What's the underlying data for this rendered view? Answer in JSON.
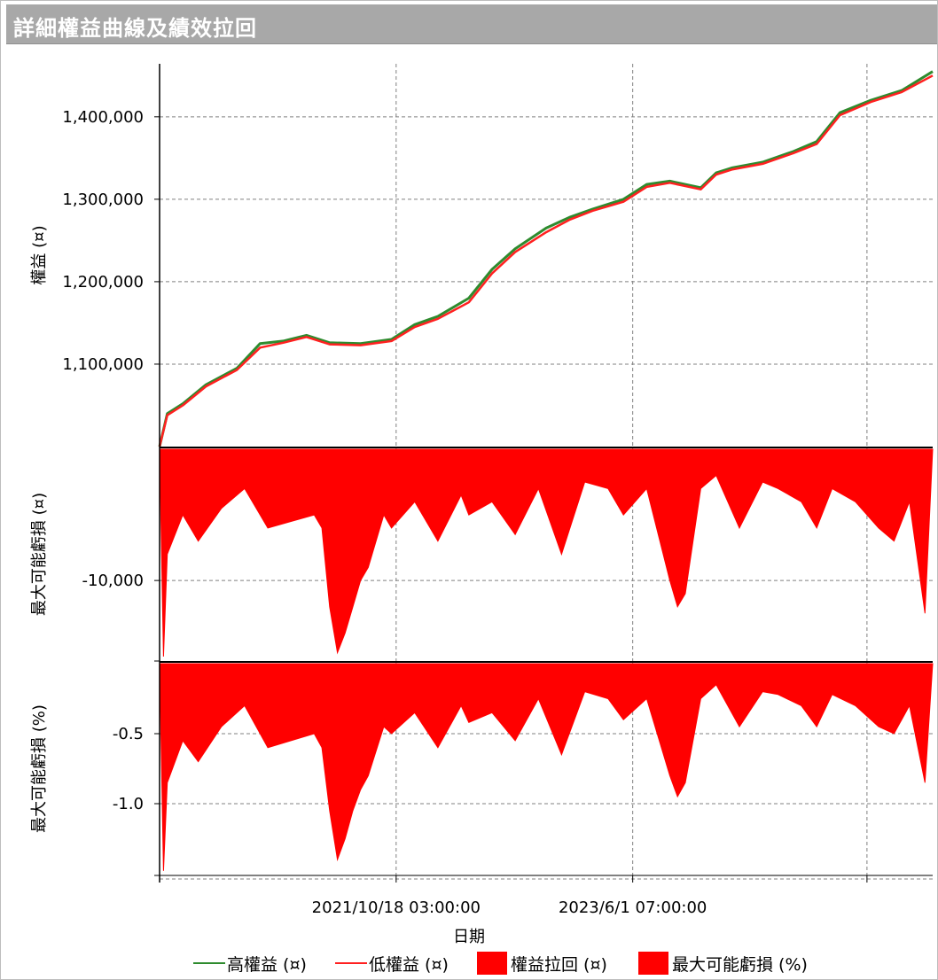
{
  "window": {
    "title": "詳細權益曲線及績效拉回"
  },
  "colors": {
    "equity_high": "#2e8b2e",
    "equity_low": "#ff2020",
    "drawdown": "#ff0000",
    "grid": "#808080"
  },
  "chart_data": [
    {
      "type": "line",
      "ylabel": "權益 (¤)",
      "ylim": [
        1000000,
        1460000
      ],
      "yticks": [
        1100000,
        1200000,
        1300000,
        1400000
      ],
      "ytick_labels": [
        "1,100,000",
        "1,200,000",
        "1,300,000",
        "1,400,000"
      ],
      "x_fraction": [
        0.0,
        0.01,
        0.03,
        0.06,
        0.1,
        0.13,
        0.16,
        0.19,
        0.22,
        0.26,
        0.3,
        0.33,
        0.36,
        0.4,
        0.43,
        0.46,
        0.5,
        0.53,
        0.56,
        0.6,
        0.63,
        0.66,
        0.7,
        0.72,
        0.74,
        0.78,
        0.82,
        0.85,
        0.88,
        0.92,
        0.96,
        1.0
      ],
      "series": [
        {
          "name": "高權益 (¤)",
          "values": [
            1000000,
            1040000,
            1052000,
            1075000,
            1095000,
            1125000,
            1128000,
            1135000,
            1126000,
            1125000,
            1130000,
            1148000,
            1158000,
            1180000,
            1215000,
            1240000,
            1265000,
            1278000,
            1288000,
            1300000,
            1318000,
            1322000,
            1314000,
            1332000,
            1338000,
            1345000,
            1358000,
            1370000,
            1405000,
            1420000,
            1432000,
            1455000
          ]
        },
        {
          "name": "低權益 (¤)",
          "values": [
            1000000,
            1038000,
            1050000,
            1073000,
            1093000,
            1120000,
            1126000,
            1133000,
            1124000,
            1123000,
            1128000,
            1145000,
            1155000,
            1175000,
            1210000,
            1236000,
            1260000,
            1275000,
            1286000,
            1297000,
            1315000,
            1320000,
            1312000,
            1330000,
            1336000,
            1343000,
            1356000,
            1367000,
            1402000,
            1418000,
            1430000,
            1450000
          ]
        }
      ]
    },
    {
      "type": "area",
      "ylabel": "最大可能虧損 (¤)",
      "series_name": "權益拉回 (¤)",
      "ylim": [
        -16000,
        0
      ],
      "yticks": [
        -10000
      ],
      "ytick_labels": [
        "-10,000"
      ],
      "x_fraction": [
        0.0,
        0.005,
        0.01,
        0.03,
        0.05,
        0.08,
        0.11,
        0.14,
        0.17,
        0.2,
        0.21,
        0.22,
        0.23,
        0.24,
        0.25,
        0.26,
        0.27,
        0.29,
        0.3,
        0.33,
        0.36,
        0.39,
        0.4,
        0.43,
        0.46,
        0.49,
        0.52,
        0.55,
        0.58,
        0.6,
        0.63,
        0.66,
        0.67,
        0.68,
        0.7,
        0.72,
        0.75,
        0.78,
        0.8,
        0.83,
        0.85,
        0.87,
        0.9,
        0.93,
        0.95,
        0.97,
        0.99,
        1.0
      ],
      "values": [
        0,
        -15800,
        -8000,
        -5000,
        -7000,
        -4500,
        -3000,
        -6000,
        -5500,
        -5000,
        -6000,
        -12000,
        -15500,
        -14000,
        -12000,
        -10000,
        -9000,
        -5000,
        -6000,
        -4000,
        -7000,
        -3500,
        -5000,
        -4000,
        -6500,
        -3000,
        -8000,
        -2500,
        -3000,
        -5000,
        -3000,
        -10000,
        -12000,
        -11000,
        -3000,
        -2000,
        -6000,
        -2500,
        -3000,
        -4000,
        -6000,
        -3000,
        -4000,
        -6000,
        -7000,
        -4000,
        -12500,
        0
      ]
    },
    {
      "type": "area",
      "ylabel": "最大可能虧損 (%)",
      "series_name": "最大可能虧損 (%)",
      "ylim": [
        -1.5,
        0
      ],
      "yticks": [
        -0.5,
        -1.0
      ],
      "ytick_labels": [
        "-0.5",
        "-1.0"
      ],
      "x_fraction": [
        0.0,
        0.005,
        0.01,
        0.03,
        0.05,
        0.08,
        0.11,
        0.14,
        0.17,
        0.2,
        0.21,
        0.22,
        0.23,
        0.24,
        0.25,
        0.26,
        0.27,
        0.29,
        0.3,
        0.33,
        0.36,
        0.39,
        0.4,
        0.43,
        0.46,
        0.49,
        0.52,
        0.55,
        0.58,
        0.6,
        0.63,
        0.66,
        0.67,
        0.68,
        0.7,
        0.72,
        0.75,
        0.78,
        0.8,
        0.83,
        0.85,
        0.87,
        0.9,
        0.93,
        0.95,
        0.97,
        0.99,
        1.0
      ],
      "values": [
        0,
        -1.48,
        -0.85,
        -0.55,
        -0.7,
        -0.45,
        -0.3,
        -0.6,
        -0.55,
        -0.5,
        -0.6,
        -1.05,
        -1.4,
        -1.25,
        -1.05,
        -0.9,
        -0.8,
        -0.45,
        -0.5,
        -0.35,
        -0.6,
        -0.3,
        -0.42,
        -0.35,
        -0.55,
        -0.25,
        -0.65,
        -0.2,
        -0.25,
        -0.4,
        -0.25,
        -0.8,
        -0.95,
        -0.85,
        -0.25,
        -0.15,
        -0.45,
        -0.2,
        -0.22,
        -0.3,
        -0.45,
        -0.22,
        -0.3,
        -0.45,
        -0.5,
        -0.3,
        -0.85,
        0
      ]
    }
  ],
  "x_axis": {
    "label": "日期",
    "tick_labels": [
      "2021/10/18 03:00:00",
      "2023/6/1 07:00:00"
    ],
    "tick_fractions": [
      0.306,
      0.612
    ]
  },
  "legend": [
    {
      "label": "高權益 (¤)",
      "kind": "line",
      "color": "#2e8b2e"
    },
    {
      "label": "低權益 (¤)",
      "kind": "line",
      "color": "#ff2020"
    },
    {
      "label": "權益拉回 (¤)",
      "kind": "box",
      "color": "#ff0000"
    },
    {
      "label": "最大可能虧損 (%)",
      "kind": "box",
      "color": "#ff0000"
    }
  ]
}
